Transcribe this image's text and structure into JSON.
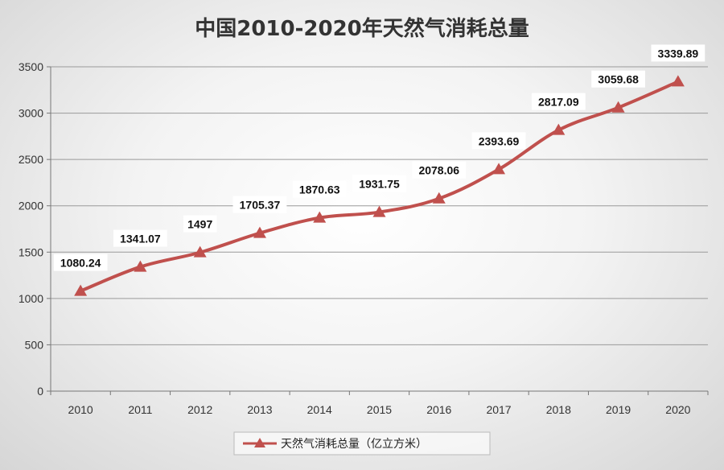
{
  "chart_data": {
    "type": "line",
    "title": "中国2010-2020年天然气消耗总量",
    "categories": [
      "2010",
      "2011",
      "2012",
      "2013",
      "2014",
      "2015",
      "2016",
      "2017",
      "2018",
      "2019",
      "2020"
    ],
    "series": [
      {
        "name": "天然气消耗总量（亿立方米）",
        "color": "#c0504d",
        "values": [
          1080.24,
          1341.07,
          1497,
          1705.37,
          1870.63,
          1931.75,
          2078.06,
          2393.69,
          2817.09,
          3059.68,
          3339.89
        ],
        "labels": [
          "1080.24",
          "1341.07",
          "1497",
          "1705.37",
          "1870.63",
          "1931.75",
          "2078.06",
          "2393.69",
          "2817.09",
          "3059.68",
          "3339.89"
        ]
      }
    ],
    "ylim": [
      0,
      3500
    ],
    "yticks": [
      "0",
      "500",
      "1000",
      "1500",
      "2000",
      "2500",
      "3000",
      "3500"
    ],
    "grid": true,
    "legend_position": "bottom",
    "marker": "triangle"
  }
}
